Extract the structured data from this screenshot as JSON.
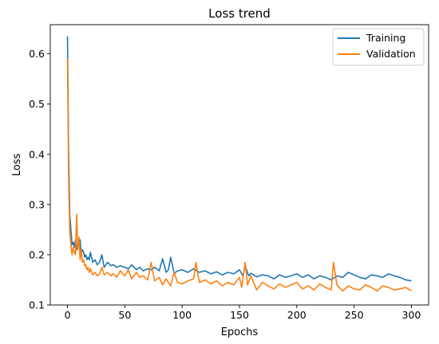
{
  "chart_data": {
    "type": "line",
    "title": "Loss trend",
    "xlabel": "Epochs",
    "ylabel": "Loss",
    "xlim": [
      -15,
      315
    ],
    "ylim": [
      0.1,
      0.658
    ],
    "xticks": [
      0,
      50,
      100,
      150,
      200,
      250,
      300
    ],
    "yticks": [
      0.1,
      0.2,
      0.3,
      0.4,
      0.5,
      0.6
    ],
    "grid": false,
    "legend_position": "top-right",
    "series": [
      {
        "name": "Training",
        "color": "#1f77b4",
        "x": [
          0,
          1,
          2,
          3,
          4,
          5,
          6,
          7,
          8,
          9,
          10,
          11,
          12,
          13,
          14,
          15,
          16,
          17,
          18,
          19,
          20,
          22,
          24,
          26,
          28,
          30,
          32,
          35,
          38,
          40,
          43,
          46,
          50,
          53,
          56,
          60,
          63,
          66,
          70,
          73,
          76,
          80,
          83,
          86,
          88,
          90,
          93,
          96,
          100,
          105,
          110,
          115,
          120,
          125,
          130,
          135,
          140,
          145,
          150,
          153,
          155,
          158,
          160,
          165,
          170,
          175,
          180,
          185,
          190,
          195,
          200,
          205,
          210,
          215,
          220,
          225,
          230,
          235,
          240,
          245,
          250,
          255,
          260,
          265,
          270,
          275,
          280,
          285,
          290,
          295,
          300
        ],
        "y": [
          0.635,
          0.4,
          0.28,
          0.25,
          0.22,
          0.225,
          0.215,
          0.23,
          0.21,
          0.225,
          0.22,
          0.23,
          0.2,
          0.21,
          0.205,
          0.195,
          0.2,
          0.19,
          0.195,
          0.19,
          0.205,
          0.185,
          0.19,
          0.18,
          0.185,
          0.2,
          0.175,
          0.185,
          0.178,
          0.18,
          0.175,
          0.178,
          0.175,
          0.172,
          0.18,
          0.17,
          0.175,
          0.168,
          0.172,
          0.17,
          0.175,
          0.168,
          0.192,
          0.165,
          0.17,
          0.195,
          0.163,
          0.168,
          0.17,
          0.165,
          0.172,
          0.165,
          0.168,
          0.162,
          0.166,
          0.16,
          0.165,
          0.162,
          0.17,
          0.158,
          0.178,
          0.158,
          0.163,
          0.156,
          0.16,
          0.158,
          0.152,
          0.16,
          0.155,
          0.158,
          0.162,
          0.155,
          0.16,
          0.152,
          0.158,
          0.155,
          0.15,
          0.158,
          0.155,
          0.165,
          0.16,
          0.155,
          0.152,
          0.16,
          0.158,
          0.155,
          0.162,
          0.158,
          0.155,
          0.15,
          0.148
        ]
      },
      {
        "name": "Validation",
        "color": "#ff7f0e",
        "x": [
          0,
          1,
          2,
          3,
          4,
          5,
          6,
          7,
          8,
          9,
          10,
          11,
          12,
          13,
          14,
          15,
          16,
          17,
          18,
          19,
          20,
          22,
          24,
          26,
          28,
          30,
          32,
          35,
          38,
          40,
          43,
          46,
          50,
          53,
          56,
          60,
          63,
          66,
          70,
          73,
          76,
          80,
          83,
          86,
          90,
          93,
          96,
          100,
          105,
          110,
          112,
          115,
          120,
          125,
          130,
          135,
          140,
          145,
          150,
          152,
          155,
          157,
          160,
          165,
          170,
          175,
          180,
          185,
          190,
          195,
          200,
          205,
          210,
          215,
          220,
          225,
          230,
          232,
          235,
          240,
          245,
          250,
          255,
          260,
          265,
          270,
          275,
          280,
          285,
          290,
          295,
          300
        ],
        "y": [
          0.59,
          0.35,
          0.245,
          0.22,
          0.2,
          0.215,
          0.205,
          0.2,
          0.28,
          0.21,
          0.235,
          0.19,
          0.21,
          0.185,
          0.19,
          0.178,
          0.18,
          0.17,
          0.175,
          0.165,
          0.172,
          0.16,
          0.165,
          0.158,
          0.162,
          0.175,
          0.16,
          0.165,
          0.158,
          0.162,
          0.155,
          0.168,
          0.158,
          0.17,
          0.152,
          0.165,
          0.155,
          0.158,
          0.15,
          0.185,
          0.148,
          0.155,
          0.14,
          0.152,
          0.138,
          0.165,
          0.145,
          0.142,
          0.148,
          0.152,
          0.185,
          0.145,
          0.15,
          0.142,
          0.148,
          0.138,
          0.145,
          0.14,
          0.155,
          0.135,
          0.185,
          0.14,
          0.158,
          0.13,
          0.145,
          0.138,
          0.132,
          0.142,
          0.135,
          0.14,
          0.145,
          0.132,
          0.138,
          0.13,
          0.142,
          0.135,
          0.13,
          0.185,
          0.14,
          0.128,
          0.138,
          0.132,
          0.13,
          0.14,
          0.135,
          0.128,
          0.138,
          0.135,
          0.13,
          0.132,
          0.135,
          0.128
        ]
      }
    ]
  }
}
